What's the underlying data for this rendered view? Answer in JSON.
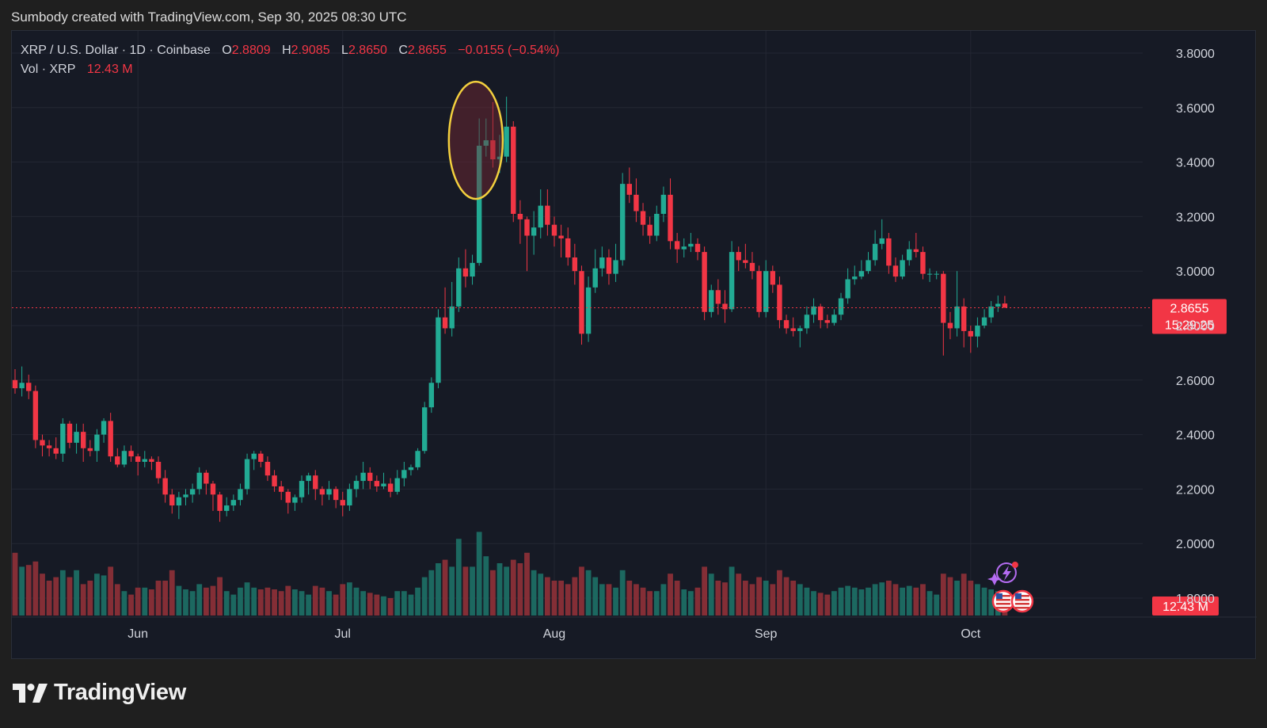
{
  "header": {
    "created_line": "Sumbody created with TradingView.com, Sep 30, 2025 08:30 UTC"
  },
  "legend": {
    "symbol": "XRP / U.S. Dollar · 1D · Coinbase",
    "o_label": "O",
    "o_value": "2.8809",
    "h_label": "H",
    "h_value": "2.9085",
    "l_label": "L",
    "l_value": "2.8650",
    "c_label": "C",
    "c_value": "2.8655",
    "change": "−0.0155 (−0.54%)",
    "vol_label": "Vol · XRP",
    "vol_value": "12.43 M"
  },
  "price_badge": {
    "price": "2.8655",
    "countdown": "15:29:25"
  },
  "volume_badge": "12.43 M",
  "brand": {
    "name": "TradingView"
  },
  "colors": {
    "up": "#22ab94",
    "down": "#f23645",
    "background": "#161a25",
    "highlight": "#f3d03e"
  },
  "chart_data": {
    "type": "candlestick",
    "title": "XRP / U.S. Dollar · 1D · Coinbase",
    "x_labels": [
      "Jun",
      "Jul",
      "Aug",
      "Sep",
      "Oct"
    ],
    "x_label_days": [
      18,
      48,
      79,
      110,
      140
    ],
    "ylim": [
      1.8,
      3.86
    ],
    "y_ticks": [
      "3.8000",
      "3.6000",
      "3.4000",
      "3.2000",
      "3.0000",
      "2.8000",
      "2.6000",
      "2.4000",
      "2.2000",
      "2.0000",
      "1.8000"
    ],
    "current_price": 2.8655,
    "highlight_days": [
      65,
      70
    ],
    "candles": [
      [
        2.6,
        2.57,
        2.64,
        2.55,
        1.8
      ],
      [
        2.57,
        2.59,
        2.65,
        2.54,
        1.4
      ],
      [
        2.59,
        2.56,
        2.62,
        2.53,
        1.45
      ],
      [
        2.56,
        2.38,
        2.58,
        2.35,
        1.55
      ],
      [
        2.38,
        2.36,
        2.4,
        2.32,
        1.2
      ],
      [
        2.36,
        2.35,
        2.38,
        2.32,
        1.0
      ],
      [
        2.35,
        2.33,
        2.39,
        2.31,
        1.1
      ],
      [
        2.33,
        2.44,
        2.46,
        2.3,
        1.3
      ],
      [
        2.44,
        2.37,
        2.45,
        2.35,
        1.1
      ],
      [
        2.37,
        2.41,
        2.44,
        2.33,
        1.3
      ],
      [
        2.41,
        2.35,
        2.44,
        2.3,
        0.9
      ],
      [
        2.35,
        2.34,
        2.38,
        2.32,
        1.0
      ],
      [
        2.34,
        2.4,
        2.42,
        2.3,
        1.2
      ],
      [
        2.4,
        2.45,
        2.46,
        2.37,
        1.15
      ],
      [
        2.45,
        2.32,
        2.48,
        2.3,
        1.4
      ],
      [
        2.32,
        2.29,
        2.35,
        2.28,
        0.9
      ],
      [
        2.29,
        2.34,
        2.36,
        2.28,
        0.7
      ],
      [
        2.34,
        2.32,
        2.36,
        2.3,
        0.6
      ],
      [
        2.32,
        2.3,
        2.33,
        2.25,
        0.8
      ],
      [
        2.3,
        2.31,
        2.34,
        2.28,
        0.8
      ],
      [
        2.31,
        2.3,
        2.32,
        2.27,
        0.75
      ],
      [
        2.3,
        2.24,
        2.32,
        2.22,
        1.0
      ],
      [
        2.24,
        2.18,
        2.27,
        2.15,
        1.0
      ],
      [
        2.18,
        2.14,
        2.2,
        2.11,
        1.3
      ],
      [
        2.14,
        2.17,
        2.19,
        2.09,
        0.85
      ],
      [
        2.17,
        2.18,
        2.2,
        2.14,
        0.75
      ],
      [
        2.18,
        2.2,
        2.22,
        2.15,
        0.7
      ],
      [
        2.2,
        2.26,
        2.28,
        2.18,
        0.9
      ],
      [
        2.26,
        2.22,
        2.27,
        2.18,
        0.8
      ],
      [
        2.22,
        2.18,
        2.23,
        2.12,
        0.85
      ],
      [
        2.18,
        2.12,
        2.19,
        2.08,
        1.1
      ],
      [
        2.12,
        2.14,
        2.17,
        2.1,
        0.7
      ],
      [
        2.14,
        2.16,
        2.18,
        2.12,
        0.6
      ],
      [
        2.16,
        2.2,
        2.22,
        2.14,
        0.8
      ],
      [
        2.2,
        2.31,
        2.33,
        2.18,
        0.95
      ],
      [
        2.31,
        2.33,
        2.34,
        2.27,
        0.8
      ],
      [
        2.33,
        2.3,
        2.34,
        2.28,
        0.75
      ],
      [
        2.3,
        2.25,
        2.32,
        2.23,
        0.8
      ],
      [
        2.25,
        2.21,
        2.27,
        2.19,
        0.75
      ],
      [
        2.21,
        2.19,
        2.23,
        2.16,
        0.7
      ],
      [
        2.19,
        2.15,
        2.2,
        2.11,
        0.85
      ],
      [
        2.15,
        2.17,
        2.18,
        2.12,
        0.75
      ],
      [
        2.17,
        2.23,
        2.25,
        2.15,
        0.7
      ],
      [
        2.23,
        2.25,
        2.26,
        2.18,
        0.6
      ],
      [
        2.25,
        2.2,
        2.27,
        2.16,
        0.85
      ],
      [
        2.2,
        2.18,
        2.21,
        2.14,
        0.8
      ],
      [
        2.18,
        2.2,
        2.23,
        2.16,
        0.7
      ],
      [
        2.2,
        2.16,
        2.21,
        2.13,
        0.6
      ],
      [
        2.16,
        2.14,
        2.19,
        2.1,
        0.9
      ],
      [
        2.14,
        2.2,
        2.22,
        2.12,
        0.95
      ],
      [
        2.2,
        2.23,
        2.25,
        2.17,
        0.8
      ],
      [
        2.23,
        2.26,
        2.3,
        2.2,
        0.7
      ],
      [
        2.26,
        2.23,
        2.28,
        2.2,
        0.65
      ],
      [
        2.23,
        2.21,
        2.25,
        2.19,
        0.6
      ],
      [
        2.21,
        2.22,
        2.26,
        2.2,
        0.55
      ],
      [
        2.22,
        2.19,
        2.24,
        2.17,
        0.5
      ],
      [
        2.19,
        2.24,
        2.27,
        2.18,
        0.7
      ],
      [
        2.24,
        2.27,
        2.3,
        2.21,
        0.7
      ],
      [
        2.27,
        2.28,
        2.29,
        2.25,
        0.6
      ],
      [
        2.28,
        2.34,
        2.35,
        2.27,
        0.8
      ],
      [
        2.34,
        2.5,
        2.52,
        2.33,
        1.1
      ],
      [
        2.5,
        2.59,
        2.61,
        2.48,
        1.3
      ],
      [
        2.59,
        2.83,
        2.86,
        2.57,
        1.5
      ],
      [
        2.83,
        2.79,
        2.94,
        2.77,
        1.6
      ],
      [
        2.79,
        2.87,
        2.96,
        2.76,
        1.4
      ],
      [
        2.87,
        3.01,
        3.05,
        2.85,
        2.2
      ],
      [
        3.01,
        2.98,
        3.08,
        2.94,
        1.4
      ],
      [
        2.98,
        3.03,
        3.06,
        2.95,
        1.4
      ],
      [
        3.03,
        3.46,
        3.56,
        3.02,
        2.4
      ],
      [
        3.46,
        3.48,
        3.56,
        3.42,
        1.7
      ],
      [
        3.48,
        3.41,
        3.62,
        3.38,
        1.3
      ],
      [
        3.41,
        3.42,
        3.5,
        3.36,
        1.5
      ],
      [
        3.42,
        3.53,
        3.64,
        3.4,
        1.4
      ],
      [
        3.53,
        3.21,
        3.55,
        3.18,
        1.6
      ],
      [
        3.21,
        3.19,
        3.26,
        3.1,
        1.5
      ],
      [
        3.19,
        3.13,
        3.2,
        3.0,
        1.8
      ],
      [
        3.13,
        3.16,
        3.22,
        3.06,
        1.3
      ],
      [
        3.16,
        3.24,
        3.3,
        3.12,
        1.2
      ],
      [
        3.24,
        3.17,
        3.3,
        3.13,
        1.1
      ],
      [
        3.17,
        3.13,
        3.2,
        3.09,
        1.0
      ],
      [
        3.13,
        3.12,
        3.17,
        3.05,
        1.0
      ],
      [
        3.12,
        3.05,
        3.16,
        3.02,
        0.9
      ],
      [
        3.05,
        3.0,
        3.1,
        2.95,
        1.1
      ],
      [
        3.0,
        2.77,
        3.02,
        2.73,
        1.4
      ],
      [
        2.77,
        2.94,
        2.98,
        2.74,
        1.3
      ],
      [
        2.94,
        3.01,
        3.08,
        2.92,
        1.1
      ],
      [
        3.01,
        3.05,
        3.09,
        2.98,
        0.9
      ],
      [
        3.05,
        2.99,
        3.08,
        2.95,
        0.9
      ],
      [
        2.99,
        3.04,
        3.1,
        2.96,
        0.8
      ],
      [
        3.04,
        3.32,
        3.36,
        3.02,
        1.3
      ],
      [
        3.32,
        3.28,
        3.38,
        3.25,
        1.0
      ],
      [
        3.28,
        3.22,
        3.34,
        3.18,
        0.9
      ],
      [
        3.22,
        3.17,
        3.25,
        3.13,
        0.8
      ],
      [
        3.17,
        3.13,
        3.2,
        3.1,
        0.7
      ],
      [
        3.13,
        3.21,
        3.24,
        3.11,
        0.7
      ],
      [
        3.21,
        3.28,
        3.31,
        3.18,
        0.9
      ],
      [
        3.28,
        3.11,
        3.34,
        3.08,
        1.2
      ],
      [
        3.11,
        3.08,
        3.14,
        3.03,
        1.0
      ],
      [
        3.08,
        3.09,
        3.12,
        3.05,
        0.75
      ],
      [
        3.09,
        3.1,
        3.14,
        3.07,
        0.7
      ],
      [
        3.1,
        3.07,
        3.12,
        3.04,
        0.8
      ],
      [
        3.07,
        2.85,
        3.09,
        2.82,
        1.4
      ],
      [
        2.85,
        2.93,
        2.95,
        2.83,
        1.2
      ],
      [
        2.93,
        2.88,
        2.97,
        2.84,
        1.0
      ],
      [
        2.88,
        2.86,
        2.93,
        2.81,
        0.95
      ],
      [
        2.86,
        3.07,
        3.11,
        2.85,
        1.4
      ],
      [
        3.07,
        3.04,
        3.09,
        3.0,
        1.2
      ],
      [
        3.04,
        3.03,
        3.1,
        3.01,
        1.0
      ],
      [
        3.03,
        3.0,
        3.07,
        2.97,
        0.9
      ],
      [
        3.0,
        2.85,
        3.02,
        2.83,
        1.1
      ],
      [
        2.85,
        3.0,
        3.04,
        2.83,
        1.0
      ],
      [
        3.0,
        2.95,
        3.02,
        2.92,
        0.9
      ],
      [
        2.95,
        2.82,
        2.98,
        2.79,
        1.3
      ],
      [
        2.82,
        2.79,
        2.84,
        2.77,
        1.1
      ],
      [
        2.79,
        2.78,
        2.83,
        2.76,
        1.0
      ],
      [
        2.78,
        2.79,
        2.8,
        2.72,
        0.9
      ],
      [
        2.79,
        2.84,
        2.87,
        2.77,
        0.8
      ],
      [
        2.84,
        2.87,
        2.9,
        2.81,
        0.7
      ],
      [
        2.87,
        2.82,
        2.88,
        2.79,
        0.65
      ],
      [
        2.82,
        2.81,
        2.84,
        2.79,
        0.6
      ],
      [
        2.81,
        2.84,
        2.86,
        2.8,
        0.7
      ],
      [
        2.84,
        2.9,
        2.92,
        2.82,
        0.8
      ],
      [
        2.9,
        2.97,
        3.01,
        2.88,
        0.85
      ],
      [
        2.97,
        2.98,
        3.02,
        2.95,
        0.8
      ],
      [
        2.98,
        3.0,
        3.04,
        2.97,
        0.75
      ],
      [
        3.0,
        3.04,
        3.07,
        2.99,
        0.8
      ],
      [
        3.04,
        3.1,
        3.15,
        3.02,
        0.9
      ],
      [
        3.1,
        3.12,
        3.19,
        3.08,
        0.95
      ],
      [
        3.12,
        3.02,
        3.14,
        2.99,
        1.0
      ],
      [
        3.02,
        2.98,
        3.05,
        2.96,
        0.9
      ],
      [
        2.98,
        3.04,
        3.06,
        2.97,
        0.8
      ],
      [
        3.04,
        3.08,
        3.11,
        3.02,
        0.85
      ],
      [
        3.08,
        3.07,
        3.14,
        3.05,
        0.8
      ],
      [
        3.07,
        2.99,
        3.09,
        2.97,
        0.9
      ],
      [
        2.99,
        2.99,
        3.01,
        2.96,
        0.7
      ],
      [
        2.99,
        2.99,
        3.0,
        2.97,
        0.6
      ],
      [
        2.99,
        2.81,
        3.0,
        2.69,
        1.2
      ],
      [
        2.81,
        2.79,
        2.85,
        2.75,
        1.1
      ],
      [
        2.79,
        2.87,
        3.0,
        2.76,
        1.0
      ],
      [
        2.87,
        2.78,
        2.9,
        2.72,
        1.2
      ],
      [
        2.78,
        2.76,
        2.8,
        2.7,
        1.0
      ],
      [
        2.76,
        2.8,
        2.83,
        2.72,
        0.9
      ],
      [
        2.8,
        2.83,
        2.86,
        2.79,
        0.8
      ],
      [
        2.83,
        2.87,
        2.89,
        2.81,
        0.75
      ],
      [
        2.87,
        2.88,
        2.91,
        2.85,
        0.7
      ],
      [
        2.881,
        2.866,
        2.909,
        2.865,
        0.5
      ]
    ]
  }
}
